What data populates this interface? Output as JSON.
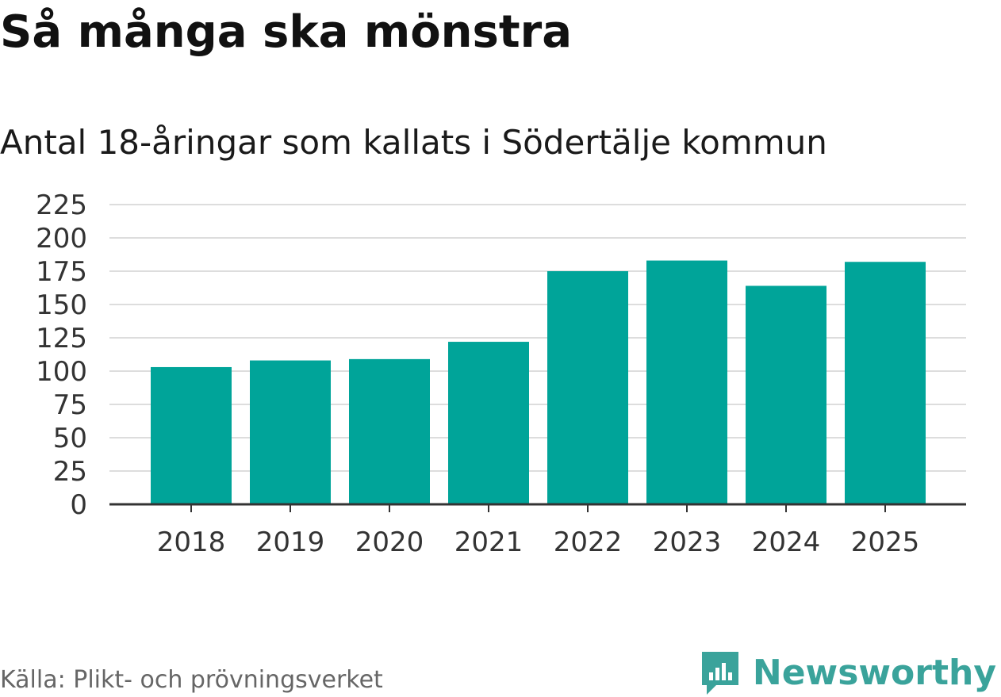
{
  "header": {
    "title": "Så många ska mönstra",
    "subtitle": "Antal 18-åringar som kallats i Södertälje kommun"
  },
  "footer": {
    "source": "Källa: Plikt- och prövningsverket",
    "brand": "Newsworthy",
    "brand_icon": "newsworthy-logo-icon"
  },
  "colors": {
    "bar": "#00a499",
    "grid": "#dddddd",
    "axis": "#333333",
    "brand": "#3aa39b"
  },
  "chart_data": {
    "type": "bar",
    "title": "Antal 18-åringar som kallats i Södertälje kommun",
    "xlabel": "",
    "ylabel": "",
    "categories": [
      "2018",
      "2019",
      "2020",
      "2021",
      "2022",
      "2023",
      "2024",
      "2025"
    ],
    "values": [
      103,
      108,
      109,
      122,
      175,
      183,
      164,
      182
    ],
    "ylim": [
      0,
      225
    ],
    "yticks": [
      0,
      25,
      50,
      75,
      100,
      125,
      150,
      175,
      200,
      225
    ],
    "grid": true,
    "legend": "none"
  }
}
